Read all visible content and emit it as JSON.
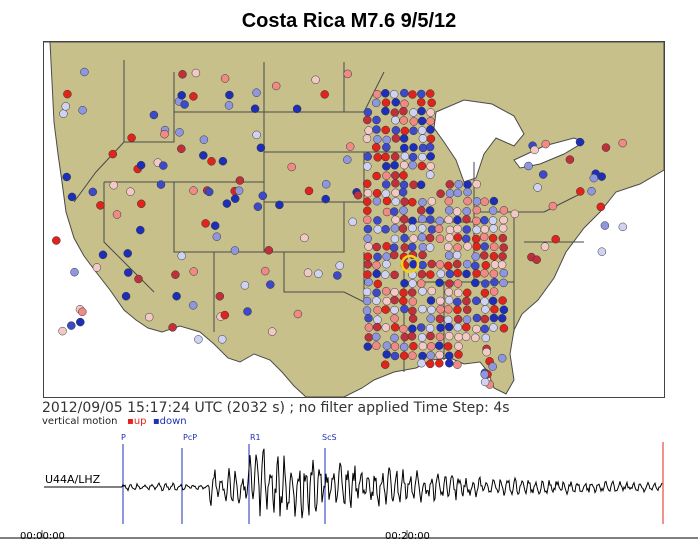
{
  "title": "Costa Rica M7.6 9/5/12",
  "status_line": "2012/09/05 15:17:24 UTC (2032 s)  ; no filter applied Time Step: 4s",
  "legend": {
    "motion": "vertical motion",
    "up": "up",
    "down": "down"
  },
  "colors": {
    "land": "#c8c08a",
    "water": "#ffffff",
    "border": "#4a4a4a",
    "up": "#e0241b",
    "down": "#1d2fb8",
    "target": "#f2d21b"
  },
  "seismogram": {
    "station": "U44A/LHZ",
    "phases": [
      "P",
      "PcP",
      "R1",
      "ScS"
    ],
    "time_labels": [
      "00:00:00",
      "00:20:00"
    ]
  }
}
